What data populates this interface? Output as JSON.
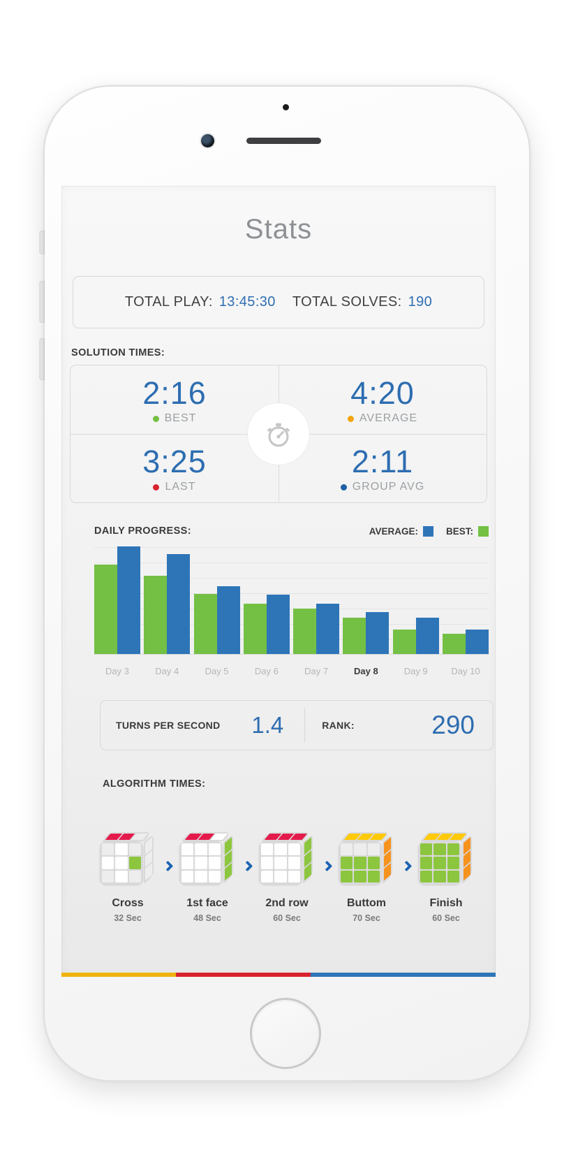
{
  "screen": {
    "title": "Stats"
  },
  "totals": {
    "play_label": "TOTAL PLAY:",
    "play_value": "13:45:30",
    "solves_label": "TOTAL SOLVES:",
    "solves_value": "190",
    "value_color": "#2d6db1"
  },
  "solution_times": {
    "heading": "SOLUTION TIMES:",
    "center_icon": "stopwatch-icon",
    "stats": [
      {
        "value": "2:16",
        "label": "BEST",
        "dot_color": "#74c044"
      },
      {
        "value": "4:20",
        "label": "AVERAGE",
        "dot_color": "#f1a50a"
      },
      {
        "value": "3:25",
        "label": "LAST",
        "dot_color": "#d8232e"
      },
      {
        "value": "2:11",
        "label": "GROUP AVG",
        "dot_color": "#1f5fa6"
      }
    ]
  },
  "chart_data": {
    "type": "bar",
    "title": "DAILY PROGRESS:",
    "categories": [
      "Day 3",
      "Day 4",
      "Day 5",
      "Day 6",
      "Day 7",
      "Day 8",
      "Day 9",
      "Day 10"
    ],
    "series": [
      {
        "name": "BEST",
        "color": "#74c044",
        "values": [
          83,
          73,
          56,
          47,
          42,
          34,
          23,
          19
        ]
      },
      {
        "name": "AVERAGE",
        "color": "#2e75b8",
        "values": [
          100,
          93,
          63,
          55,
          47,
          39,
          34,
          23
        ]
      }
    ],
    "ylim": [
      0,
      100
    ],
    "y_axis_labels_shown": false,
    "values_are": "relative bar height percent; chart shows no numeric y-axis",
    "legend": [
      {
        "label": "AVERAGE:",
        "color": "#2e75b8"
      },
      {
        "label": "BEST:",
        "color": "#74c044"
      }
    ],
    "legend_position": "top-right",
    "grid": true,
    "highlighted_category": "Day 8"
  },
  "performance": {
    "tps_label": "TURNS PER SECOND",
    "tps_value": "1.4",
    "rank_label": "RANK:",
    "rank_value": "290"
  },
  "algorithm_times": {
    "heading": "ALGORITHM TIMES:",
    "arrow_color": "#1c63b2",
    "steps": [
      {
        "name": "Cross",
        "time": "32 Sec",
        "top": [
          "#e51a4c",
          "#e51a4c",
          "#ededed"
        ],
        "right": [
          "#ededed",
          "#ededed",
          "#ededed"
        ],
        "front": [
          "#ededed",
          "#ffffff",
          "#ededed",
          "#ffffff",
          "#ffffff",
          "#8cc63e",
          "#ededed",
          "#ffffff",
          "#ededed"
        ]
      },
      {
        "name": "1st face",
        "time": "48 Sec",
        "top": [
          "#e51a4c",
          "#e51a4c",
          "#ffffff"
        ],
        "right": [
          "#8cc63e",
          "#8cc63e",
          "#8cc63e"
        ],
        "front": [
          "#ffffff",
          "#ffffff",
          "#ffffff",
          "#ffffff",
          "#ffffff",
          "#ffffff",
          "#ffffff",
          "#ffffff",
          "#ffffff"
        ]
      },
      {
        "name": "2nd row",
        "time": "60 Sec",
        "top": [
          "#e51a4c",
          "#e51a4c",
          "#e51a4c"
        ],
        "right": [
          "#8cc63e",
          "#8cc63e",
          "#8cc63e"
        ],
        "front": [
          "#ffffff",
          "#ffffff",
          "#ffffff",
          "#ffffff",
          "#ffffff",
          "#ffffff",
          "#ffffff",
          "#ffffff",
          "#ffffff"
        ]
      },
      {
        "name": "Buttom",
        "time": "70 Sec",
        "top": [
          "#ffca05",
          "#ffca05",
          "#ffca05"
        ],
        "right": [
          "#f6921e",
          "#f6921e",
          "#f6921e"
        ],
        "front": [
          "#ededed",
          "#ededed",
          "#ededed",
          "#8cc63e",
          "#8cc63e",
          "#8cc63e",
          "#8cc63e",
          "#8cc63e",
          "#8cc63e"
        ]
      },
      {
        "name": "Finish",
        "time": "60 Sec",
        "top": [
          "#ffca05",
          "#ffca05",
          "#ffca05"
        ],
        "right": [
          "#f6921e",
          "#f6921e",
          "#f6921e"
        ],
        "front": [
          "#8cc63e",
          "#8cc63e",
          "#8cc63e",
          "#8cc63e",
          "#8cc63e",
          "#8cc63e",
          "#8cc63e",
          "#8cc63e",
          "#8cc63e"
        ]
      }
    ]
  },
  "footer_bar": {
    "segments": [
      {
        "color": "#efb310",
        "width_pct": 26.4
      },
      {
        "color": "#d8232e",
        "width_pct": 31.0
      },
      {
        "color": "#2e75b8",
        "width_pct": 42.6
      }
    ]
  }
}
